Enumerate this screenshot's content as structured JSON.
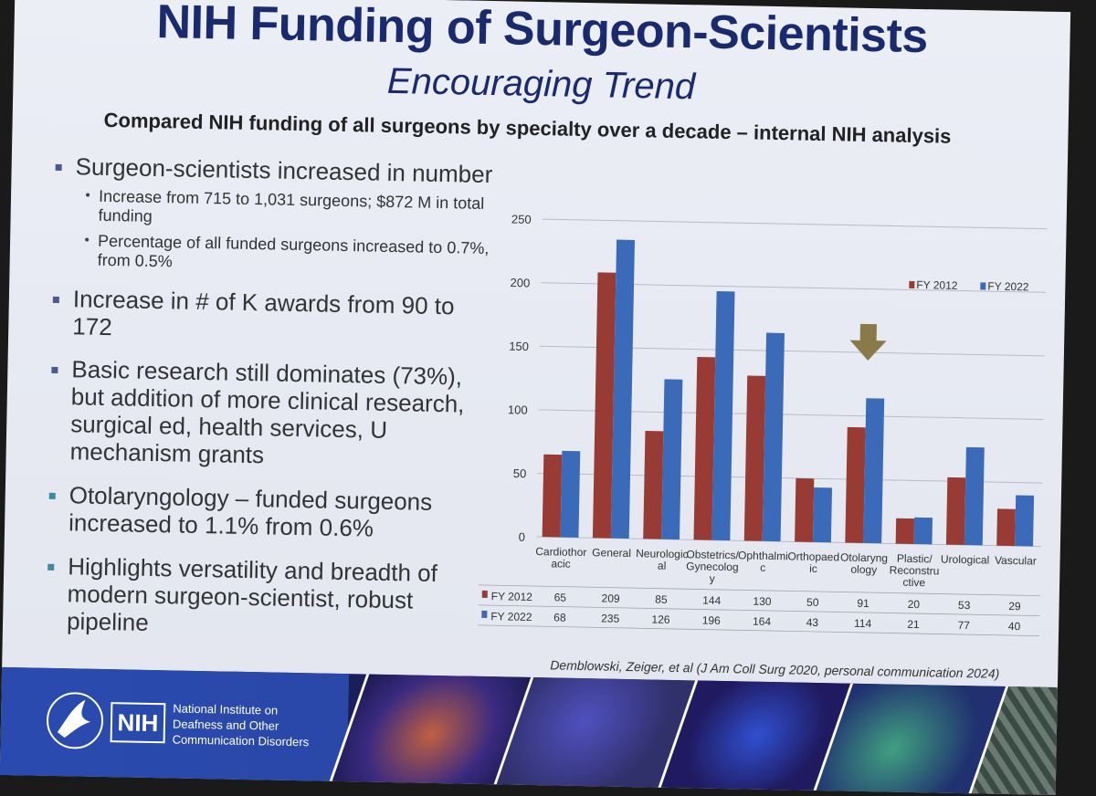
{
  "slide": {
    "title": "NIH Funding of Surgeon-Scientists",
    "subtitle": "Encouraging Trend",
    "subheading": "Compared NIH funding of all surgeons by specialty over a decade – internal NIH analysis",
    "bullets": {
      "b1": "Surgeon-scientists increased in number",
      "b1_sub1": "Increase from 715 to 1,031 surgeons; $872 M in total funding",
      "b1_sub2": "Percentage of all funded surgeons increased to 0.7%, from 0.5%",
      "b2": "Increase in # of K awards from 90 to 172",
      "b3": "Basic research still dominates (73%), but addition of more clinical research, surgical ed, health services, U mechanism grants",
      "b4": "Otolaryngology – funded surgeons increased to 1.1% from 0.6%",
      "b5": "Highlights versatility and breadth of modern surgeon-scientist, robust pipeline"
    },
    "citation": "Demblowski, Zeiger, et al (J Am Coll Surg 2020, personal communication 2024)"
  },
  "footer": {
    "institute_line1": "National Institute on",
    "institute_line2": "Deafness and Other",
    "institute_line3": "Communication Disorders",
    "nih_logo_text": "NIH"
  },
  "chart_data": {
    "type": "bar",
    "categories": [
      [
        "Cardiothor",
        "acic"
      ],
      [
        "General"
      ],
      [
        "Neurologic",
        "al"
      ],
      [
        "Obstetrics/",
        "Gynecolog",
        "y"
      ],
      [
        "Ophthalmi",
        "c"
      ],
      [
        "Orthopaed",
        "ic"
      ],
      [
        "Otolaryng",
        "ology"
      ],
      [
        "Plastic/",
        "Reconstru",
        "ctive"
      ],
      [
        "Urological"
      ],
      [
        "Vascular"
      ]
    ],
    "series": [
      {
        "name": "FY 2012",
        "values": [
          65,
          209,
          85,
          144,
          130,
          50,
          91,
          20,
          53,
          29
        ],
        "color": "#973b34"
      },
      {
        "name": "FY 2022",
        "values": [
          68,
          235,
          126,
          196,
          164,
          43,
          114,
          21,
          77,
          40
        ],
        "color": "#3b6bb8"
      }
    ],
    "ylim": [
      0,
      250
    ],
    "yticks": [
      0,
      50,
      100,
      150,
      200,
      250
    ],
    "grid": true,
    "legend": "top-right",
    "data_table": true,
    "annotation": "arrow-pointing-down-at-Otolaryngology",
    "annotation_color": "#8a7a4a"
  }
}
